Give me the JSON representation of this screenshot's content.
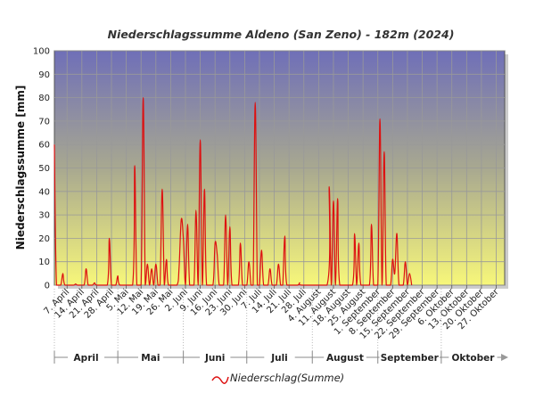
{
  "chart_data": {
    "type": "line",
    "title": "Niederschlagssumme Aldeno (San Zeno) - 182m (2024)",
    "ylabel": "Niederschlagssumme [mm]",
    "xlabel": "",
    "ylim": [
      0,
      100
    ],
    "yticks": [
      0,
      10,
      20,
      30,
      40,
      50,
      60,
      70,
      80,
      90,
      100
    ],
    "grid": true,
    "legend_position": "bottom-center",
    "colors": {
      "series": "#dd1111",
      "grid": "#999999",
      "plot_top": "#6f6fb8",
      "plot_mid": "#a8a890",
      "plot_bottom": "#f7f77a"
    },
    "x_range": [
      "2024-04-01",
      "2024-10-31"
    ],
    "x_tick_labels": [
      {
        "date": "2024-04-07",
        "label": "7. April"
      },
      {
        "date": "2024-04-14",
        "label": "14. April"
      },
      {
        "date": "2024-04-21",
        "label": "21. April"
      },
      {
        "date": "2024-04-28",
        "label": "28. April"
      },
      {
        "date": "2024-05-05",
        "label": "5. Mai"
      },
      {
        "date": "2024-05-12",
        "label": "12. Mai"
      },
      {
        "date": "2024-05-19",
        "label": "19. Mai"
      },
      {
        "date": "2024-05-26",
        "label": "26. Mai"
      },
      {
        "date": "2024-06-02",
        "label": "2. Juni"
      },
      {
        "date": "2024-06-09",
        "label": "9. Juni"
      },
      {
        "date": "2024-06-16",
        "label": "16. Juni"
      },
      {
        "date": "2024-06-23",
        "label": "23. Juni"
      },
      {
        "date": "2024-06-30",
        "label": "30. Juni"
      },
      {
        "date": "2024-07-07",
        "label": "7. Juli"
      },
      {
        "date": "2024-07-14",
        "label": "14. Juli"
      },
      {
        "date": "2024-07-21",
        "label": "21. Juli"
      },
      {
        "date": "2024-07-28",
        "label": "28. Juli"
      },
      {
        "date": "2024-08-04",
        "label": "4. August"
      },
      {
        "date": "2024-08-11",
        "label": "11. August"
      },
      {
        "date": "2024-08-18",
        "label": "18. August"
      },
      {
        "date": "2024-08-25",
        "label": "25. August"
      },
      {
        "date": "2024-09-01",
        "label": "1. September"
      },
      {
        "date": "2024-09-08",
        "label": "8. September"
      },
      {
        "date": "2024-09-15",
        "label": "15. September"
      },
      {
        "date": "2024-09-22",
        "label": "22. September"
      },
      {
        "date": "2024-09-29",
        "label": "29. September"
      },
      {
        "date": "2024-10-06",
        "label": "6. Oktober"
      },
      {
        "date": "2024-10-13",
        "label": "13. Oktober"
      },
      {
        "date": "2024-10-20",
        "label": "20. Oktober"
      },
      {
        "date": "2024-10-27",
        "label": "27. Oktober"
      }
    ],
    "months": [
      {
        "label": "April",
        "start": "2024-04-01",
        "end": "2024-04-30"
      },
      {
        "label": "Mai",
        "start": "2024-05-01",
        "end": "2024-05-31"
      },
      {
        "label": "Juni",
        "start": "2024-06-01",
        "end": "2024-06-30"
      },
      {
        "label": "Juli",
        "start": "2024-07-01",
        "end": "2024-07-31"
      },
      {
        "label": "August",
        "start": "2024-08-01",
        "end": "2024-08-31"
      },
      {
        "label": "September",
        "start": "2024-09-01",
        "end": "2024-09-30"
      },
      {
        "label": "Oktober",
        "start": "2024-10-01",
        "end": "2024-10-31"
      }
    ],
    "series": [
      {
        "name": "Niederschlag(Summe)",
        "points": [
          [
            "2024-04-01",
            60
          ],
          [
            "2024-04-02",
            0
          ],
          [
            "2024-04-04",
            0
          ],
          [
            "2024-04-05",
            5
          ],
          [
            "2024-04-06",
            0
          ],
          [
            "2024-04-10",
            0
          ],
          [
            "2024-04-11",
            0.5
          ],
          [
            "2024-04-12",
            0
          ],
          [
            "2024-04-15",
            0
          ],
          [
            "2024-04-16",
            7
          ],
          [
            "2024-04-17",
            0
          ],
          [
            "2024-04-19",
            0
          ],
          [
            "2024-04-20",
            1
          ],
          [
            "2024-04-21",
            0
          ],
          [
            "2024-04-26",
            0
          ],
          [
            "2024-04-27",
            20
          ],
          [
            "2024-04-28",
            0
          ],
          [
            "2024-04-30",
            0
          ],
          [
            "2024-05-01",
            4
          ],
          [
            "2024-05-02",
            0
          ],
          [
            "2024-05-08",
            0
          ],
          [
            "2024-05-09",
            51
          ],
          [
            "2024-05-10",
            0
          ],
          [
            "2024-05-12",
            0
          ],
          [
            "2024-05-13",
            80
          ],
          [
            "2024-05-14",
            0
          ],
          [
            "2024-05-15",
            9
          ],
          [
            "2024-05-16",
            0
          ],
          [
            "2024-05-17",
            7
          ],
          [
            "2024-05-18",
            0
          ],
          [
            "2024-05-19",
            9
          ],
          [
            "2024-05-20",
            0
          ],
          [
            "2024-05-21",
            0
          ],
          [
            "2024-05-22",
            41
          ],
          [
            "2024-05-23",
            0
          ],
          [
            "2024-05-24",
            11
          ],
          [
            "2024-05-25",
            0
          ],
          [
            "2024-05-29",
            0
          ],
          [
            "2024-05-30",
            8
          ],
          [
            "2024-05-31",
            28
          ],
          [
            "2024-06-01",
            20
          ],
          [
            "2024-06-02",
            0
          ],
          [
            "2024-06-03",
            26
          ],
          [
            "2024-06-04",
            0
          ],
          [
            "2024-06-06",
            0
          ],
          [
            "2024-06-07",
            32
          ],
          [
            "2024-06-08",
            0
          ],
          [
            "2024-06-09",
            62
          ],
          [
            "2024-06-10",
            0
          ],
          [
            "2024-06-11",
            41
          ],
          [
            "2024-06-12",
            0
          ],
          [
            "2024-06-15",
            0
          ],
          [
            "2024-06-16",
            18
          ],
          [
            "2024-06-17",
            13
          ],
          [
            "2024-06-18",
            0
          ],
          [
            "2024-06-20",
            0
          ],
          [
            "2024-06-21",
            30
          ],
          [
            "2024-06-22",
            0
          ],
          [
            "2024-06-23",
            25
          ],
          [
            "2024-06-24",
            0
          ],
          [
            "2024-06-27",
            0
          ],
          [
            "2024-06-28",
            18
          ],
          [
            "2024-06-29",
            0
          ],
          [
            "2024-07-01",
            0
          ],
          [
            "2024-07-02",
            10
          ],
          [
            "2024-07-03",
            0
          ],
          [
            "2024-07-04",
            0
          ],
          [
            "2024-07-05",
            78
          ],
          [
            "2024-07-06",
            0
          ],
          [
            "2024-07-07",
            0
          ],
          [
            "2024-07-08",
            15
          ],
          [
            "2024-07-09",
            0
          ],
          [
            "2024-07-11",
            0
          ],
          [
            "2024-07-12",
            7
          ],
          [
            "2024-07-13",
            0
          ],
          [
            "2024-07-15",
            0
          ],
          [
            "2024-07-16",
            9
          ],
          [
            "2024-07-17",
            0
          ],
          [
            "2024-07-18",
            0
          ],
          [
            "2024-07-19",
            21
          ],
          [
            "2024-07-20",
            0
          ],
          [
            "2024-07-25",
            0
          ],
          [
            "2024-07-26",
            1
          ],
          [
            "2024-07-27",
            0
          ],
          [
            "2024-08-08",
            0
          ],
          [
            "2024-08-09",
            42
          ],
          [
            "2024-08-10",
            0
          ],
          [
            "2024-08-11",
            36
          ],
          [
            "2024-08-12",
            0
          ],
          [
            "2024-08-13",
            37
          ],
          [
            "2024-08-14",
            0
          ],
          [
            "2024-08-20",
            0
          ],
          [
            "2024-08-21",
            22
          ],
          [
            "2024-08-22",
            0
          ],
          [
            "2024-08-23",
            18
          ],
          [
            "2024-08-24",
            0
          ],
          [
            "2024-08-28",
            0
          ],
          [
            "2024-08-29",
            26
          ],
          [
            "2024-08-30",
            0
          ],
          [
            "2024-09-01",
            0
          ],
          [
            "2024-09-02",
            71
          ],
          [
            "2024-09-03",
            0
          ],
          [
            "2024-09-04",
            57
          ],
          [
            "2024-09-05",
            0
          ],
          [
            "2024-09-07",
            0
          ],
          [
            "2024-09-08",
            11
          ],
          [
            "2024-09-09",
            5
          ],
          [
            "2024-09-10",
            22
          ],
          [
            "2024-09-11",
            0
          ],
          [
            "2024-09-13",
            0
          ],
          [
            "2024-09-14",
            10
          ],
          [
            "2024-09-15",
            0
          ],
          [
            "2024-09-16",
            5
          ],
          [
            "2024-09-17",
            0
          ]
        ]
      }
    ]
  }
}
